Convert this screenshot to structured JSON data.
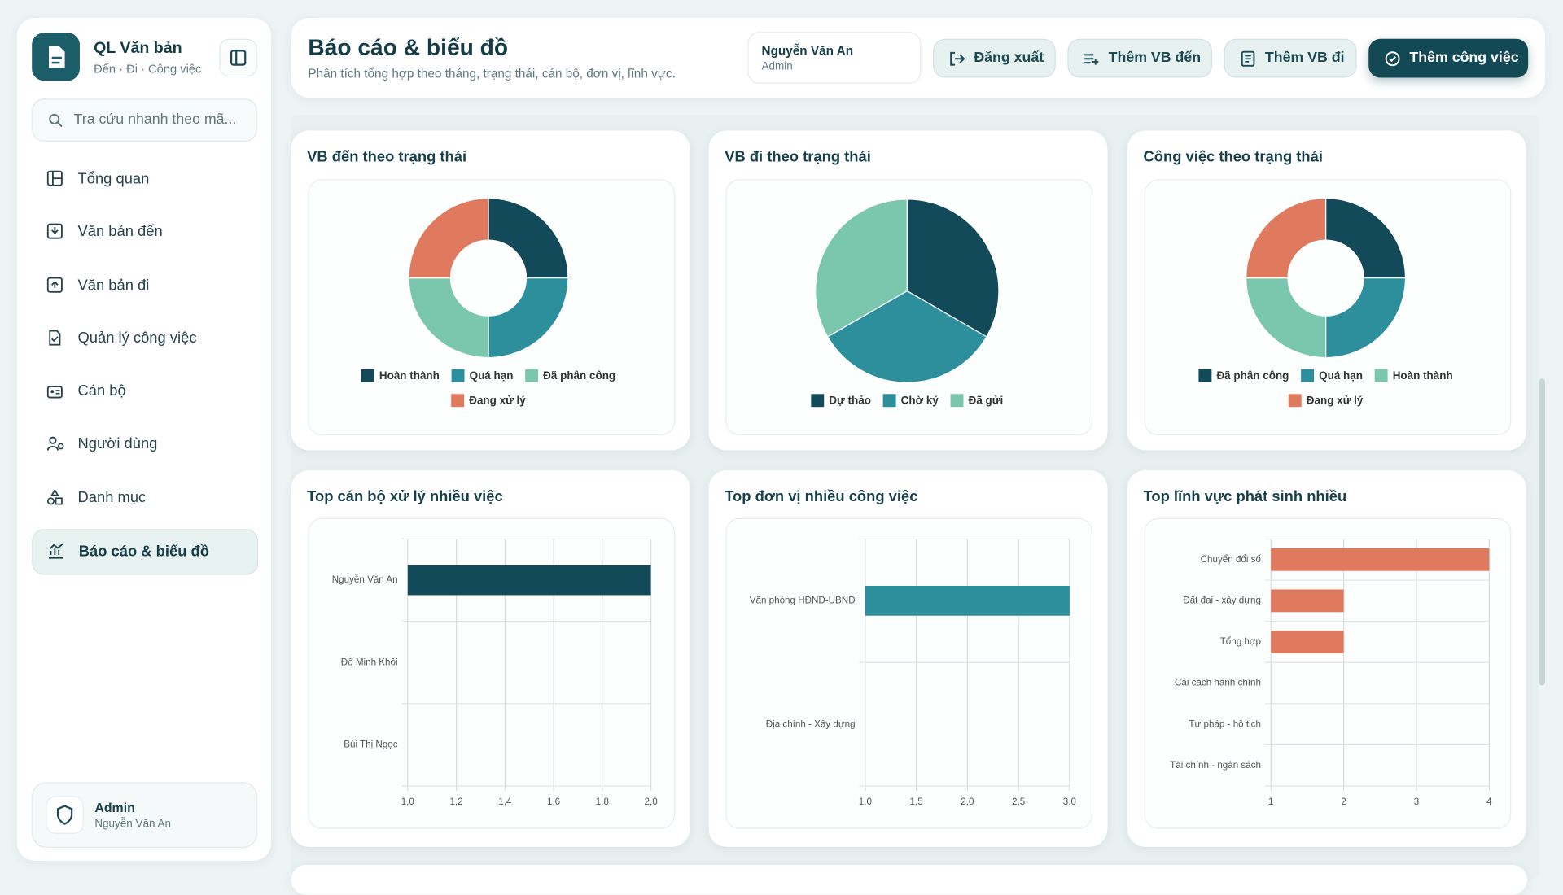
{
  "sidebar": {
    "brand": {
      "title": "QL Văn bản",
      "subtitle": "Đến · Đi · Công việc"
    },
    "search_placeholder": "Tra cứu nhanh theo mã...",
    "nav": [
      "Tổng quan",
      "Văn bản đến",
      "Văn bản đi",
      "Quản lý công việc",
      "Cán bộ",
      "Người dùng",
      "Danh mục",
      "Báo cáo & biểu đồ"
    ],
    "user": {
      "role": "Admin",
      "name": "Nguyễn Văn An"
    }
  },
  "header": {
    "title": "Báo cáo & biểu đồ",
    "subtitle": "Phân tích tổng hợp theo tháng, trạng thái, cán bộ, đơn vị, lĩnh vực.",
    "user": {
      "name": "Nguyễn Văn An",
      "role": "Admin"
    },
    "buttons": [
      "Đăng xuất",
      "Thêm VB đến",
      "Thêm VB đi",
      "Thêm công việc"
    ]
  },
  "chart_data": [
    {
      "type": "pie",
      "donut": true,
      "title": "VB đến theo trạng thái",
      "categories": [
        "Hoàn thành",
        "Quá hạn",
        "Đã phân công",
        "Đang xử lý"
      ],
      "values": [
        1,
        1,
        1,
        1
      ],
      "colors": [
        "#124a5a",
        "#2e8f9c",
        "#7ac7ae",
        "#e07a5f"
      ],
      "legend": "bottom"
    },
    {
      "type": "pie",
      "donut": false,
      "title": "VB đi theo trạng thái",
      "categories": [
        "Dự thảo",
        "Chờ ký",
        "Đã gửi"
      ],
      "values": [
        1,
        1,
        1
      ],
      "colors": [
        "#124a5a",
        "#2e8f9c",
        "#7ac7ae"
      ],
      "legend": "bottom"
    },
    {
      "type": "pie",
      "donut": true,
      "title": "Công việc theo trạng thái",
      "categories": [
        "Đã phân công",
        "Quá hạn",
        "Hoàn thành",
        "Đang xử lý"
      ],
      "values": [
        1,
        1,
        1,
        1
      ],
      "colors": [
        "#124a5a",
        "#2e8f9c",
        "#7ac7ae",
        "#e07a5f"
      ],
      "legend": "bottom"
    },
    {
      "type": "bar",
      "orientation": "horizontal",
      "title": "Top cán bộ xử lý nhiều việc",
      "categories": [
        "Nguyễn Văn An",
        "Đỗ Minh Khôi",
        "Bùi Thị Ngọc"
      ],
      "values": [
        2,
        1,
        1
      ],
      "color": "#124a5a",
      "xlim": [
        1,
        2
      ],
      "xticks": [
        {
          "value": 1,
          "label": "1,0"
        },
        {
          "value": 1.2,
          "label": "1,2"
        },
        {
          "value": 1.4,
          "label": "1,4"
        },
        {
          "value": 1.6,
          "label": "1,6"
        },
        {
          "value": 1.8,
          "label": "1,8"
        },
        {
          "value": 2,
          "label": "2,0"
        }
      ],
      "grid": true
    },
    {
      "type": "bar",
      "orientation": "horizontal",
      "title": "Top đơn vị nhiều công việc",
      "categories": [
        "Văn phòng HĐND-UBND",
        "Địa chính - Xây dựng"
      ],
      "values": [
        3,
        1
      ],
      "color": "#2e8f9c",
      "xlim": [
        1,
        3
      ],
      "xticks": [
        {
          "value": 1,
          "label": "1,0"
        },
        {
          "value": 1.5,
          "label": "1,5"
        },
        {
          "value": 2,
          "label": "2,0"
        },
        {
          "value": 2.5,
          "label": "2,5"
        },
        {
          "value": 3,
          "label": "3,0"
        }
      ],
      "grid": true
    },
    {
      "type": "bar",
      "orientation": "horizontal",
      "title": "Top lĩnh vực phát sinh nhiều",
      "categories": [
        "Chuyển đổi số",
        "Đất đai - xây dựng",
        "Tổng hợp",
        "Cải cách hành chính",
        "Tư pháp - hộ tịch",
        "Tài chính - ngân sách"
      ],
      "values": [
        4,
        2,
        2,
        1,
        1,
        1
      ],
      "color": "#e07a5f",
      "xlim": [
        1,
        4
      ],
      "xticks": [
        1,
        2,
        3,
        4
      ],
      "grid": true
    }
  ]
}
